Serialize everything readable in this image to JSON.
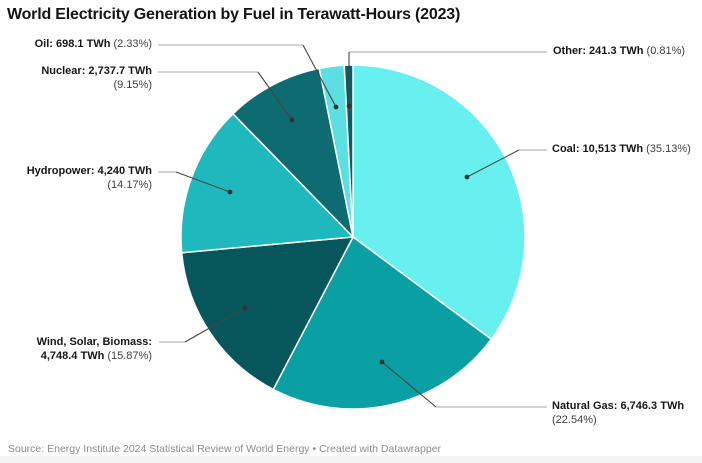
{
  "chart_data": {
    "type": "pie",
    "title": "World Electricity Generation by Fuel in Terawatt-Hours (2023)",
    "unit": "TWh",
    "direction": "clockwise",
    "start_angle": "12-oclock",
    "slices": [
      {
        "name": "Coal",
        "value_twh": 10513,
        "pct": 35.13,
        "color": "#68F0F0",
        "l1b": "Coal: 10,513 TWh",
        "l1n": " (35.13%)",
        "l2b": "",
        "l2n": ""
      },
      {
        "name": "Natural Gas",
        "value_twh": 6746.3,
        "pct": 22.54,
        "color": "#0A9FA2",
        "l1b": "Natural Gas: 6,746.3 TWh",
        "l1n": "",
        "l2b": "",
        "l2n": "(22.54%)"
      },
      {
        "name": "Wind, Solar, Biomass",
        "value_twh": 4748.4,
        "pct": 15.87,
        "color": "#07565C",
        "l1b": "Wind, Solar, Biomass:",
        "l1n": "",
        "l2b": "4,748.4 TWh",
        "l2n": " (15.87%)"
      },
      {
        "name": "Hydropower",
        "value_twh": 4240,
        "pct": 14.17,
        "color": "#1FB9BD",
        "l1b": "Hydropower: 4,240 TWh",
        "l1n": "",
        "l2b": "",
        "l2n": "(14.17%)"
      },
      {
        "name": "Nuclear",
        "value_twh": 2737.7,
        "pct": 9.15,
        "color": "#0E6B71",
        "l1b": "Nuclear: 2,737.7 TWh",
        "l1n": "",
        "l2b": "",
        "l2n": "(9.15%)"
      },
      {
        "name": "Oil",
        "value_twh": 698.1,
        "pct": 2.33,
        "color": "#5CDEE2",
        "l1b": "Oil: 698.1 TWh",
        "l1n": " (2.33%)",
        "l2b": "",
        "l2n": ""
      },
      {
        "name": "Other",
        "value_twh": 241.3,
        "pct": 0.81,
        "color": "#0B5E64",
        "l1b": "Other: 241.3 TWh",
        "l1n": " (0.81%)",
        "l2b": "",
        "l2n": ""
      }
    ]
  },
  "footer": {
    "source": "Source: Energy Institute 2024 Statistical Review of World Energy",
    "separator": " • ",
    "created_with": "Created with Datawrapper"
  },
  "colors": {
    "connector_outer": "#a9a9a9",
    "connector_inner": "#454545",
    "connector_dot": "#333333",
    "slice_border": "#ffffff"
  }
}
